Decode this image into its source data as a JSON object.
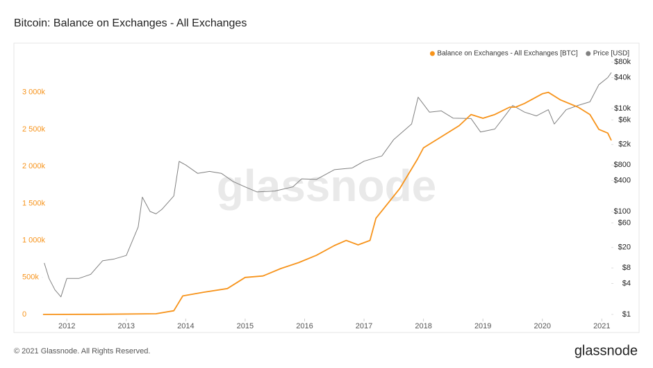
{
  "chart_data": {
    "type": "line",
    "title": "Bitcoin: Balance on Exchanges - All Exchanges",
    "watermark": "glassnode",
    "footer": "© 2021 Glassnode. All Rights Reserved.",
    "logo": "glassnode",
    "xlim": [
      2011.6,
      2021.16
    ],
    "xticks": [
      2012,
      2013,
      2014,
      2015,
      2016,
      2017,
      2018,
      2019,
      2020,
      2021
    ],
    "ylim": [
      -56000,
      3420000
    ],
    "yticks": [
      {
        "value": 0,
        "label": "0"
      },
      {
        "value": 500000,
        "label": "500k"
      },
      {
        "value": 1000000,
        "label": "1 000k"
      },
      {
        "value": 1500000,
        "label": "1 500k"
      },
      {
        "value": 2000000,
        "label": "2 000k"
      },
      {
        "value": 2500000,
        "label": "2 500k"
      },
      {
        "value": 3000000,
        "label": "3 000k"
      }
    ],
    "y2lim": [
      0.83,
      83000
    ],
    "y2log": true,
    "y2ticks": [
      {
        "value": 1,
        "label": "$1"
      },
      {
        "value": 4,
        "label": "$4"
      },
      {
        "value": 8,
        "label": "$8"
      },
      {
        "value": 20,
        "label": "$20"
      },
      {
        "value": 60,
        "label": "$60"
      },
      {
        "value": 100,
        "label": "$100"
      },
      {
        "value": 400,
        "label": "$400"
      },
      {
        "value": 800,
        "label": "$800"
      },
      {
        "value": 2000,
        "label": "$2k"
      },
      {
        "value": 6000,
        "label": "$6k"
      },
      {
        "value": 10000,
        "label": "$10k"
      },
      {
        "value": 40000,
        "label": "$40k"
      },
      {
        "value": 80000,
        "label": "$80k"
      }
    ],
    "legend": "top-right",
    "series": [
      {
        "name": "Balance on Exchanges - All Exchanges [BTC]",
        "color": "#f7931a",
        "x": [
          2011.6,
          2012.5,
          2013.5,
          2013.8,
          2013.95,
          2014.3,
          2014.7,
          2015.0,
          2015.3,
          2015.6,
          2015.9,
          2016.2,
          2016.5,
          2016.7,
          2016.9,
          2017.1,
          2017.2,
          2017.4,
          2017.6,
          2017.9,
          2018.0,
          2018.3,
          2018.6,
          2018.8,
          2019.0,
          2019.2,
          2019.45,
          2019.55,
          2019.7,
          2020.0,
          2020.1,
          2020.3,
          2020.6,
          2020.8,
          2020.95,
          2021.1,
          2021.16
        ],
        "values": [
          0,
          2000,
          10000,
          50000,
          250000,
          300000,
          350000,
          500000,
          520000,
          620000,
          700000,
          800000,
          930000,
          1000000,
          940000,
          1000000,
          1300000,
          1500000,
          1700000,
          2100000,
          2250000,
          2400000,
          2550000,
          2700000,
          2650000,
          2700000,
          2800000,
          2800000,
          2850000,
          2980000,
          3000000,
          2900000,
          2800000,
          2700000,
          2500000,
          2450000,
          2350000
        ]
      },
      {
        "name": "Price [USD]",
        "color": "#808080",
        "axis": "y2",
        "x": [
          2011.62,
          2011.7,
          2011.8,
          2011.9,
          2012.0,
          2012.2,
          2012.4,
          2012.6,
          2012.8,
          2013.0,
          2013.2,
          2013.27,
          2013.4,
          2013.5,
          2013.6,
          2013.8,
          2013.89,
          2014.0,
          2014.2,
          2014.4,
          2014.6,
          2014.8,
          2015.0,
          2015.2,
          2015.5,
          2015.8,
          2015.95,
          2016.2,
          2016.5,
          2016.8,
          2017.0,
          2017.3,
          2017.5,
          2017.8,
          2017.91,
          2018.1,
          2018.3,
          2018.5,
          2018.8,
          2018.96,
          2019.2,
          2019.4,
          2019.5,
          2019.7,
          2019.9,
          2020.1,
          2020.2,
          2020.4,
          2020.6,
          2020.8,
          2020.95,
          2021.1,
          2021.16
        ],
        "values": [
          10,
          5,
          3,
          2.2,
          5,
          5,
          6,
          11,
          12,
          14,
          50,
          190,
          100,
          90,
          110,
          200,
          940,
          800,
          550,
          600,
          550,
          380,
          300,
          240,
          250,
          300,
          430,
          420,
          650,
          700,
          950,
          1200,
          2500,
          5000,
          16600,
          8500,
          9000,
          6500,
          6400,
          3500,
          4000,
          8000,
          11500,
          8500,
          7200,
          9500,
          5000,
          9500,
          11500,
          13500,
          29000,
          40000,
          50000
        ]
      }
    ]
  }
}
